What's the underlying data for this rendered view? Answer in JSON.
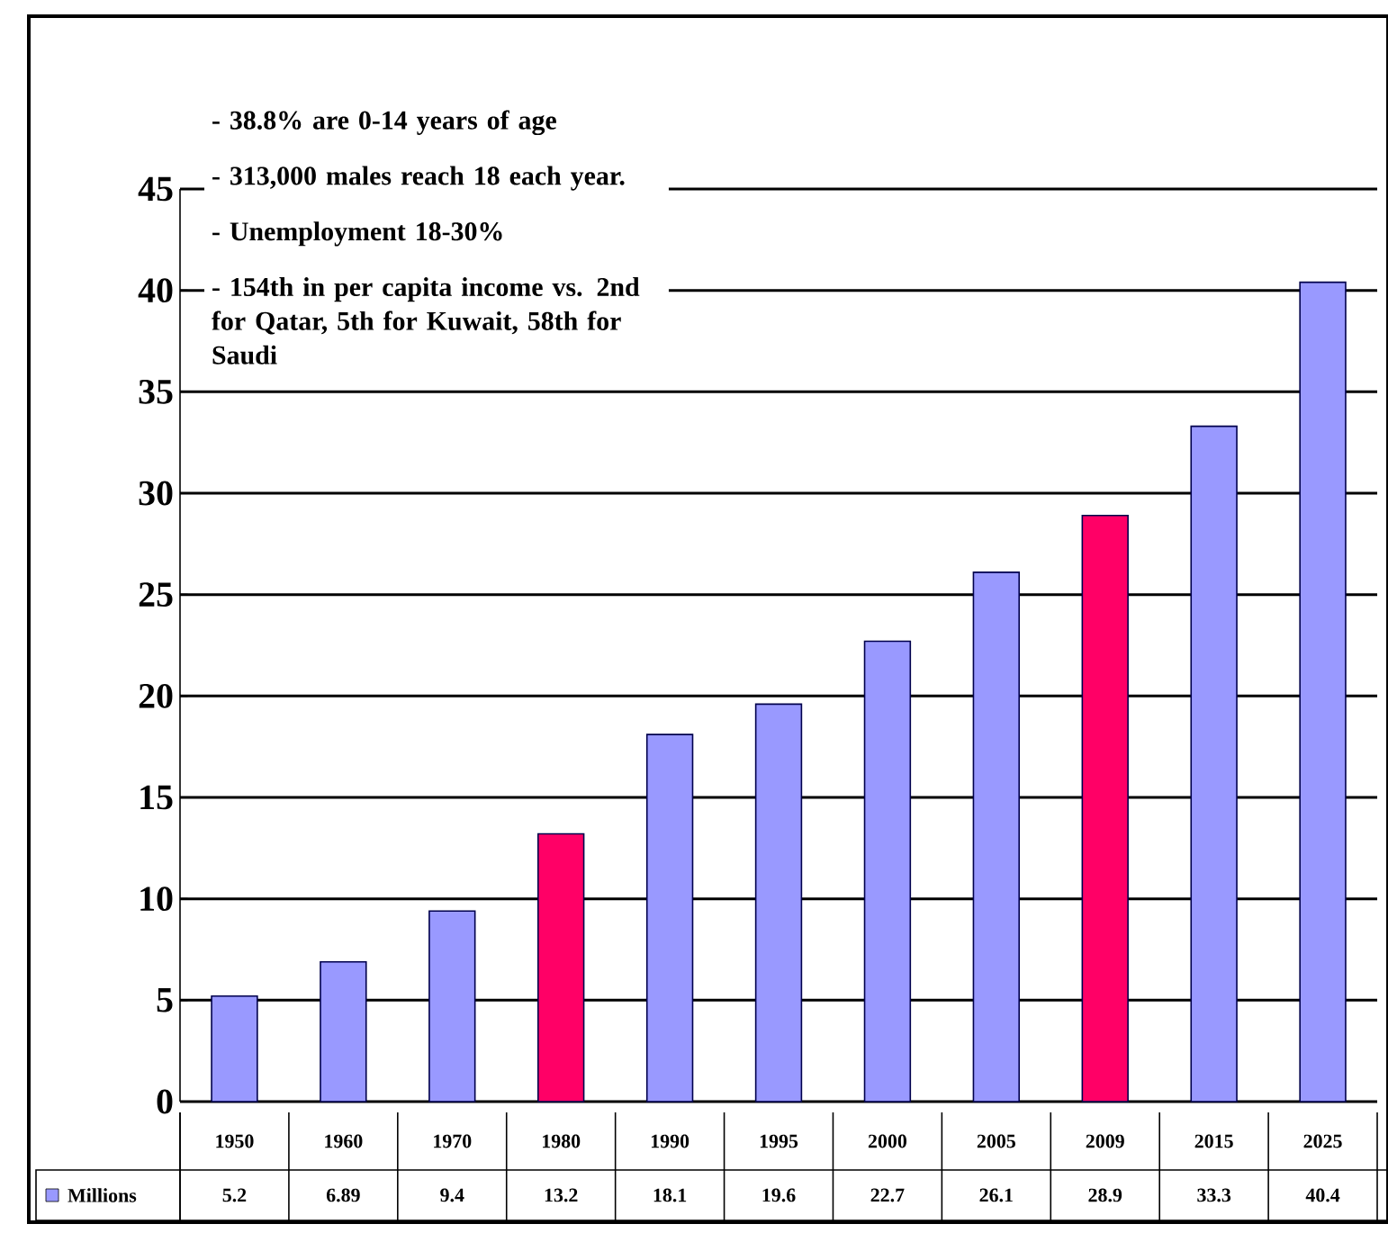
{
  "chart_data": {
    "type": "bar",
    "categories": [
      "1950",
      "1960",
      "1970",
      "1980",
      "1990",
      "1995",
      "2000",
      "2005",
      "2009",
      "2015",
      "2025"
    ],
    "series": [
      {
        "name": "Millions",
        "color": "#9999ff",
        "colors": [
          "#9999ff",
          "#9999ff",
          "#9999ff",
          "#ff0066",
          "#9999ff",
          "#9999ff",
          "#9999ff",
          "#9999ff",
          "#ff0066",
          "#9999ff",
          "#9999ff"
        ],
        "values": [
          5.2,
          6.89,
          9.4,
          13.2,
          18.1,
          19.6,
          22.7,
          26.1,
          28.9,
          33.3,
          40.4
        ]
      }
    ],
    "ylim": [
      0,
      45
    ],
    "yticks": [
      0,
      5,
      10,
      15,
      20,
      25,
      30,
      35,
      40,
      45
    ],
    "grid": "y",
    "data_labels": true,
    "annotations": [
      "- 38.8% are 0-14 years of age",
      "- 313,000 males reach 18 each year.",
      "- Unemployment 18-30%",
      "- 154th in per capita income vs. 2nd for Qatar, 5th for Kuwait, 58th for Saudi"
    ]
  }
}
